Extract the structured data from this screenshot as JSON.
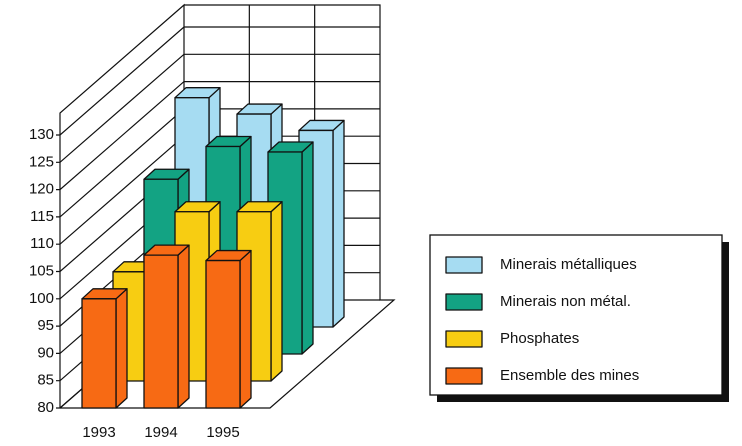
{
  "chart_data": {
    "type": "bar3d",
    "categories": [
      "1993",
      "1994",
      "1995"
    ],
    "series": [
      {
        "name": "Minerais métalliques",
        "color": "#a6dcf2",
        "values": [
          122,
          119,
          116
        ]
      },
      {
        "name": "Minerais non métal.",
        "color": "#13a383",
        "values": [
          112,
          118,
          117
        ]
      },
      {
        "name": "Phosphates",
        "color": "#f7cd12",
        "values": [
          100,
          111,
          111
        ]
      },
      {
        "name": "Ensemble des mines",
        "color": "#f76a14",
        "values": [
          100,
          108,
          107
        ]
      }
    ],
    "ylim": [
      80,
      130
    ],
    "yticks": [
      80,
      85,
      90,
      95,
      100,
      105,
      110,
      115,
      120,
      125,
      130
    ],
    "grid": true
  }
}
